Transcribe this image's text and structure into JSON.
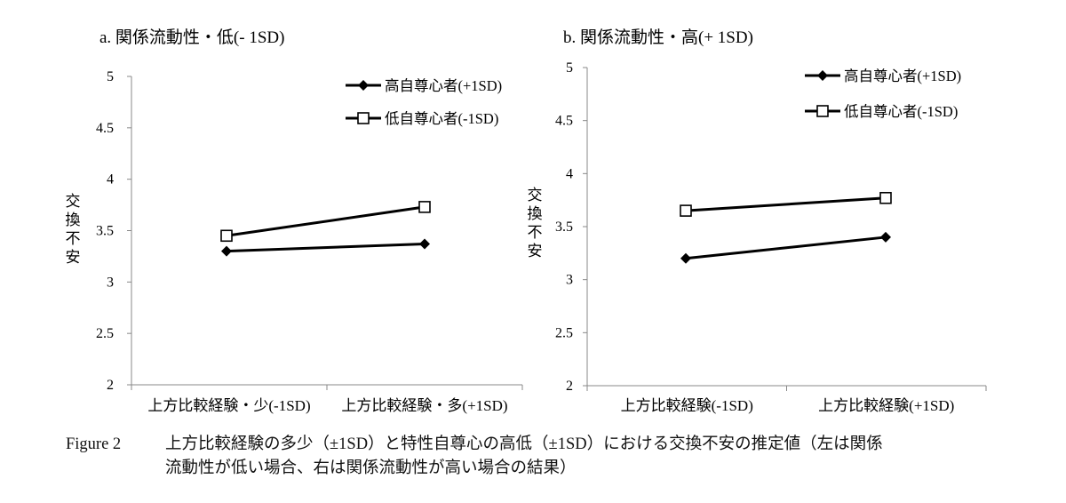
{
  "chart_data": [
    {
      "type": "line",
      "title": "a. 関係流動性・低(- 1SD)",
      "ylabel": "交換不安",
      "categories": [
        "上方比較経験・少(-1SD)",
        "上方比較経験・多(+1SD)"
      ],
      "ylim": [
        2,
        5
      ],
      "yticks": [
        "2",
        "2.5",
        "3",
        "3.5",
        "4",
        "4.5",
        "5"
      ],
      "series": [
        {
          "name": "高自尊心者(+1SD)",
          "marker": "filled-diamond",
          "values": [
            3.3,
            3.37
          ]
        },
        {
          "name": "低自尊心者(-1SD)",
          "marker": "open-square",
          "values": [
            3.45,
            3.73
          ]
        }
      ],
      "legend": "top-right",
      "grid": false
    },
    {
      "type": "line",
      "title": "b. 関係流動性・高(+ 1SD)",
      "ylabel": "交換不安",
      "categories": [
        "上方比較経験(-1SD)",
        "上方比較経験(+1SD)"
      ],
      "ylim": [
        2,
        5
      ],
      "yticks": [
        "2",
        "2.5",
        "3",
        "3.5",
        "4",
        "4.5",
        "5"
      ],
      "series": [
        {
          "name": "高自尊心者(+1SD)",
          "marker": "filled-diamond",
          "values": [
            3.2,
            3.4
          ]
        },
        {
          "name": "低自尊心者(-1SD)",
          "marker": "open-square",
          "values": [
            3.65,
            3.77
          ]
        }
      ],
      "legend": "top-right",
      "grid": false
    }
  ],
  "caption": {
    "label": "Figure 2",
    "line1": "上方比較経験の多少（±1SD）と特性自尊心の高低（±1SD）における交換不安の推定値（左は関係",
    "line2": "流動性が低い場合、右は関係流動性が高い場合の結果）"
  },
  "colors": {
    "line": "#000000",
    "axis": "#888888"
  }
}
